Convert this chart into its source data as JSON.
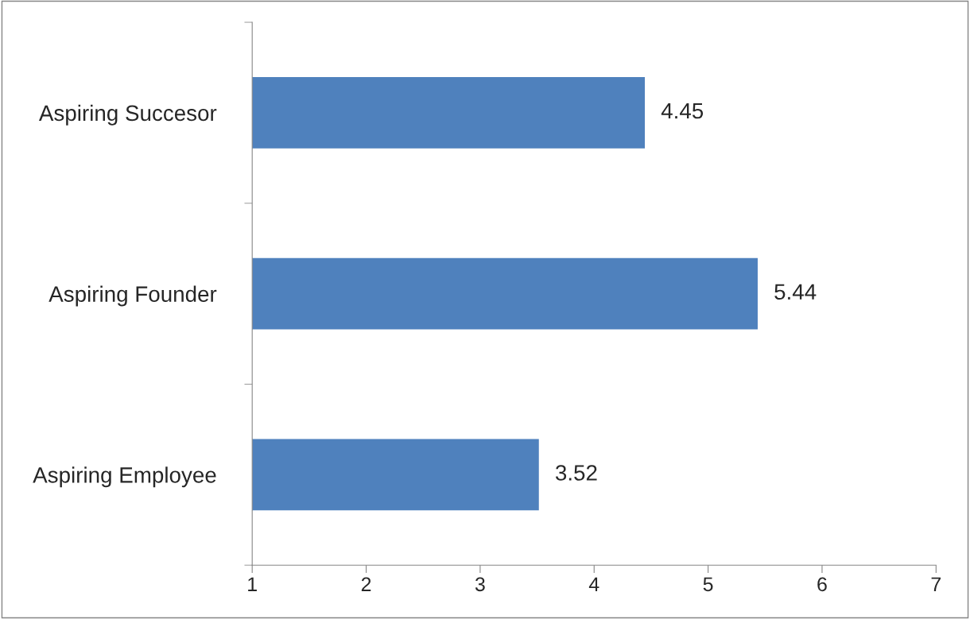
{
  "chart_data": {
    "type": "bar",
    "orientation": "horizontal",
    "categories": [
      "Aspiring Succesor",
      "Aspiring Founder",
      "Aspiring Employee"
    ],
    "values": [
      4.45,
      5.44,
      3.52
    ],
    "color": "#4f81bd",
    "xlim": [
      1,
      7
    ],
    "xticks": [
      1,
      2,
      3,
      4,
      5,
      6,
      7
    ],
    "data_labels": true,
    "grid": false,
    "legend": false
  }
}
